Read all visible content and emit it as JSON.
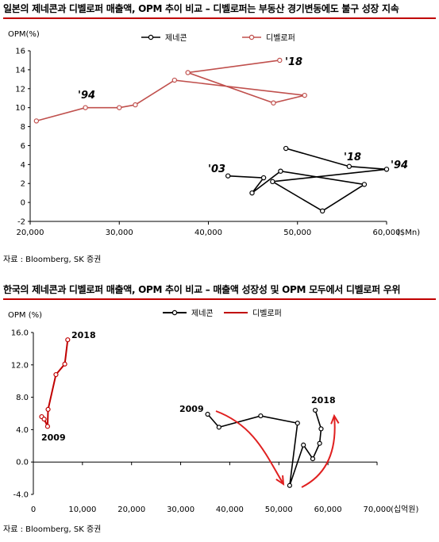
{
  "chart_data": [
    {
      "type": "line",
      "title": "일본의 제네콘과 디벨로퍼 매출액, OPM 추이 비교 – 디벨로퍼는 부동산 경기변동에도 불구 성장 지속",
      "ylabel": "OPM(%)",
      "xlabel": "($Mn)",
      "xlim": [
        20000,
        60000
      ],
      "ylim": [
        -2,
        16
      ],
      "x_ticks": [
        "20,000",
        "30,000",
        "40,000",
        "50,000",
        "60,000"
      ],
      "y_ticks": [
        "-2",
        "0",
        "2",
        "4",
        "6",
        "8",
        "10",
        "12",
        "14",
        "16"
      ],
      "x_tick_values": [
        20000,
        30000,
        40000,
        50000,
        60000
      ],
      "y_tick_values": [
        -2,
        0,
        2,
        4,
        6,
        8,
        10,
        12,
        14,
        16
      ],
      "legend_position": "top",
      "series": [
        {
          "name": "제네콘",
          "color": "#000000",
          "points": [
            [
              42200,
              2.8
            ],
            [
              46200,
              2.6
            ],
            [
              44900,
              1.0
            ],
            [
              48100,
              3.3
            ],
            [
              57500,
              1.9
            ],
            [
              52800,
              -0.9
            ],
            [
              47200,
              2.2
            ],
            [
              60000,
              3.5
            ],
            [
              55800,
              3.8
            ],
            [
              48700,
              5.7
            ]
          ]
        },
        {
          "name": "디벨로퍼",
          "color": "#c0504d",
          "points": [
            [
              20700,
              8.6
            ],
            [
              26200,
              10.0
            ],
            [
              30000,
              10.0
            ],
            [
              31800,
              10.3
            ],
            [
              36200,
              12.9
            ],
            [
              50800,
              11.3
            ],
            [
              47300,
              10.5
            ],
            [
              37700,
              13.7
            ],
            [
              48000,
              15.0
            ]
          ]
        }
      ],
      "annotations": [
        {
          "text": "'94",
          "series": "디벨로퍼"
        },
        {
          "text": "'18",
          "series": "디벨로퍼"
        },
        {
          "text": "'03",
          "series": "제네콘"
        },
        {
          "text": "'18",
          "series": "제네콘"
        },
        {
          "text": "'94",
          "series": "제네콘"
        }
      ],
      "source": "자료 : Bloomberg, SK 증권"
    },
    {
      "type": "line",
      "title": "한국의 제네콘과 디벨로퍼 매출액, OPM 추이 비교 – 매출액 성장성 및 OPM 모두에서 디벨로퍼 우위",
      "ylabel": "OPM (%)",
      "xlabel": "(십억원)",
      "xlim": [
        0,
        70000
      ],
      "ylim": [
        -4,
        16
      ],
      "x_ticks": [
        "0",
        "10,000",
        "20,000",
        "30,000",
        "40,000",
        "50,000",
        "60,000",
        "70,000"
      ],
      "y_ticks": [
        "-4.0",
        "0.0",
        "4.0",
        "8.0",
        "12.0",
        "16.0"
      ],
      "x_tick_values": [
        0,
        10000,
        20000,
        30000,
        40000,
        50000,
        60000,
        70000
      ],
      "y_tick_values": [
        -4,
        0,
        4,
        8,
        12,
        16
      ],
      "legend_position": "top",
      "series": [
        {
          "name": "제네콘",
          "color": "#000000",
          "points": [
            [
              35500,
              5.9
            ],
            [
              37800,
              4.3
            ],
            [
              46300,
              5.7
            ],
            [
              53800,
              4.8
            ],
            [
              52200,
              -2.9
            ],
            [
              55000,
              2.1
            ],
            [
              56900,
              0.4
            ],
            [
              58300,
              2.3
            ],
            [
              58600,
              4.1
            ],
            [
              57400,
              6.4
            ]
          ]
        },
        {
          "name": "디벨로퍼",
          "color": "#c00000",
          "points": [
            [
              1700,
              5.6
            ],
            [
              2200,
              5.3
            ],
            [
              2900,
              4.4
            ],
            [
              3000,
              6.5
            ],
            [
              4600,
              10.8
            ],
            [
              6400,
              12.1
            ],
            [
              7000,
              15.1
            ]
          ]
        }
      ],
      "annotations": [
        {
          "text": "2018",
          "series": "디벨로퍼"
        },
        {
          "text": "2009",
          "series": "디벨로퍼"
        },
        {
          "text": "2009",
          "series": "제네콘"
        },
        {
          "text": "2018",
          "series": "제네콘"
        }
      ],
      "source": "자료 : Bloomberg, SK 증권"
    }
  ]
}
